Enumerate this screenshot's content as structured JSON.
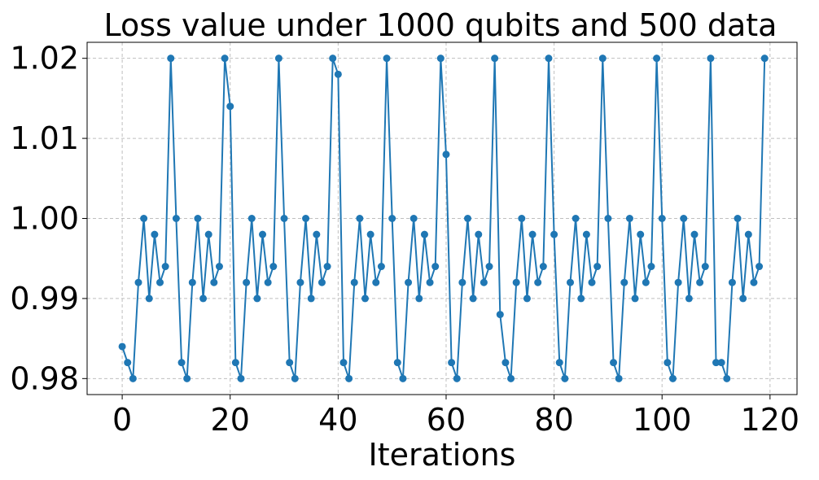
{
  "chart_data": {
    "type": "line",
    "title": "Loss value under 1000 qubits and 500 data",
    "xlabel": "Iterations",
    "ylabel": "",
    "xlim": [
      -6.5,
      125
    ],
    "ylim": [
      0.978,
      1.022
    ],
    "x_ticks": [
      0,
      20,
      40,
      60,
      80,
      100,
      120
    ],
    "x_tick_labels": [
      "0",
      "20",
      "40",
      "60",
      "80",
      "100",
      "120"
    ],
    "y_ticks": [
      0.98,
      0.99,
      1.0,
      1.01,
      1.02
    ],
    "y_tick_labels": [
      "0.98",
      "0.99",
      "1.00",
      "1.01",
      "1.02"
    ],
    "grid": true,
    "legend": "none",
    "colors": {
      "series": "#1f77b4",
      "grid": "#b0b0b0",
      "axis": "#000000"
    },
    "series": [
      {
        "marker": "circle",
        "x": [
          0,
          1,
          2,
          3,
          4,
          5,
          6,
          7,
          8,
          9,
          10,
          11,
          12,
          13,
          14,
          15,
          16,
          17,
          18,
          19,
          20,
          21,
          22,
          23,
          24,
          25,
          26,
          27,
          28,
          29,
          30,
          31,
          32,
          33,
          34,
          35,
          36,
          37,
          38,
          39,
          40,
          41,
          42,
          43,
          44,
          45,
          46,
          47,
          48,
          49,
          50,
          51,
          52,
          53,
          54,
          55,
          56,
          57,
          58,
          59,
          60,
          61,
          62,
          63,
          64,
          65,
          66,
          67,
          68,
          69,
          70,
          71,
          72,
          73,
          74,
          75,
          76,
          77,
          78,
          79,
          80,
          81,
          82,
          83,
          84,
          85,
          86,
          87,
          88,
          89,
          90,
          91,
          92,
          93,
          94,
          95,
          96,
          97,
          98,
          99,
          100,
          101,
          102,
          103,
          104,
          105,
          106,
          107,
          108,
          109,
          110,
          111,
          112,
          113,
          114,
          115,
          116,
          117,
          118,
          119
        ],
        "values": [
          0.984,
          0.982,
          0.98,
          0.992,
          1.0,
          0.99,
          0.998,
          0.992,
          0.994,
          1.02,
          1.0,
          0.982,
          0.98,
          0.992,
          1.0,
          0.99,
          0.998,
          0.992,
          0.994,
          1.02,
          1.014,
          0.982,
          0.98,
          0.992,
          1.0,
          0.99,
          0.998,
          0.992,
          0.994,
          1.02,
          1.0,
          0.982,
          0.98,
          0.992,
          1.0,
          0.99,
          0.998,
          0.992,
          0.994,
          1.02,
          1.018,
          0.982,
          0.98,
          0.992,
          1.0,
          0.99,
          0.998,
          0.992,
          0.994,
          1.02,
          1.0,
          0.982,
          0.98,
          0.992,
          1.0,
          0.99,
          0.998,
          0.992,
          0.994,
          1.02,
          1.008,
          0.982,
          0.98,
          0.992,
          1.0,
          0.99,
          0.998,
          0.992,
          0.994,
          1.02,
          0.988,
          0.982,
          0.98,
          0.992,
          1.0,
          0.99,
          0.998,
          0.992,
          0.994,
          1.02,
          0.998,
          0.982,
          0.98,
          0.992,
          1.0,
          0.99,
          0.998,
          0.992,
          0.994,
          1.02,
          1.0,
          0.982,
          0.98,
          0.992,
          1.0,
          0.99,
          0.998,
          0.992,
          0.994,
          1.02,
          1.0,
          0.982,
          0.98,
          0.992,
          1.0,
          0.99,
          0.998,
          0.992,
          0.994,
          1.02,
          0.982,
          0.982,
          0.98,
          0.992,
          1.0,
          0.99,
          0.998,
          0.992,
          0.994,
          1.02
        ]
      }
    ]
  }
}
